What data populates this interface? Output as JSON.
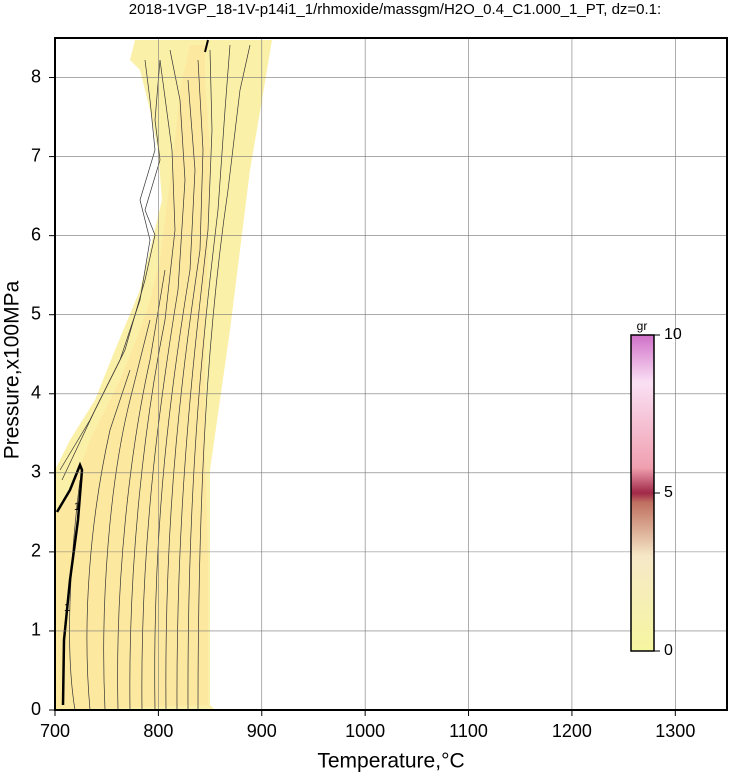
{
  "chart_data": {
    "type": "contour",
    "title": "2018-1VGP_18-1V-p14i1_1/rhmoxide/massgm/H2O_0.4_C1.000_1_PT, dz=0.1:",
    "x_label": "Temperature,°C",
    "y_label": "Pressure,x100MPa",
    "xlim": [
      700,
      1350
    ],
    "ylim": [
      0,
      8.5
    ],
    "xticks": [
      700,
      800,
      900,
      1000,
      1100,
      1200,
      1300
    ],
    "yticks": [
      0,
      1,
      2,
      3,
      4,
      5,
      6,
      7,
      8
    ],
    "grid": true,
    "contour_labels": [
      1,
      1
    ],
    "colorbar": {
      "label": "gr",
      "lim": [
        0,
        10
      ],
      "ticks": [
        0,
        5,
        10
      ]
    }
  }
}
